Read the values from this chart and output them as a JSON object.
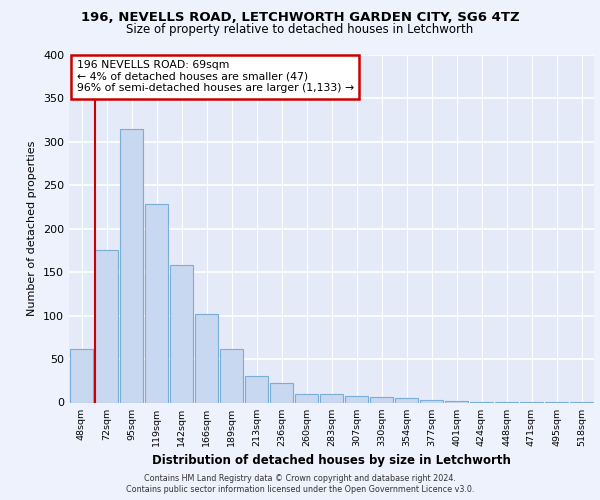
{
  "title1": "196, NEVELLS ROAD, LETCHWORTH GARDEN CITY, SG6 4TZ",
  "title2": "Size of property relative to detached houses in Letchworth",
  "xlabel": "Distribution of detached houses by size in Letchworth",
  "ylabel": "Number of detached properties",
  "categories": [
    "48sqm",
    "72sqm",
    "95sqm",
    "119sqm",
    "142sqm",
    "166sqm",
    "189sqm",
    "213sqm",
    "236sqm",
    "260sqm",
    "283sqm",
    "307sqm",
    "330sqm",
    "354sqm",
    "377sqm",
    "401sqm",
    "424sqm",
    "448sqm",
    "471sqm",
    "495sqm",
    "518sqm"
  ],
  "values": [
    62,
    175,
    315,
    228,
    158,
    102,
    62,
    30,
    22,
    10,
    10,
    8,
    6,
    5,
    3,
    2,
    1,
    1,
    1,
    1,
    1
  ],
  "bar_color": "#c8d8f0",
  "bar_edge_color": "#7baed6",
  "annotation_line1": "196 NEVELLS ROAD: 69sqm",
  "annotation_line2": "← 4% of detached houses are smaller (47)",
  "annotation_line3": "96% of semi-detached houses are larger (1,133) →",
  "annotation_box_color": "#ffffff",
  "annotation_box_edge_color": "#cc0000",
  "vertical_line_color": "#cc0000",
  "footer1": "Contains HM Land Registry data © Crown copyright and database right 2024.",
  "footer2": "Contains public sector information licensed under the Open Government Licence v3.0.",
  "bg_color": "#eef2fc",
  "plot_bg_color": "#e4eaf8",
  "grid_color": "#ffffff",
  "ylim": [
    0,
    400
  ],
  "yticks": [
    0,
    50,
    100,
    150,
    200,
    250,
    300,
    350,
    400
  ]
}
